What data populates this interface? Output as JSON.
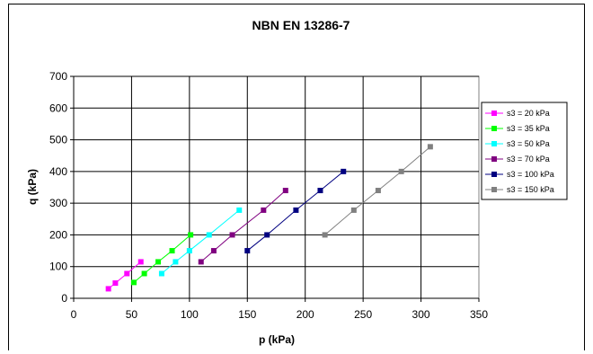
{
  "chart_data": {
    "type": "scatter",
    "title": "NBN EN 13286-7",
    "xlabel": "p (kPa)",
    "ylabel": "q (kPa)",
    "xlim": [
      0,
      350
    ],
    "ylim": [
      0,
      700
    ],
    "xticks": [
      "0",
      "50",
      "100",
      "150",
      "200",
      "250",
      "300",
      "350"
    ],
    "yticks": [
      "0",
      "100",
      "200",
      "300",
      "400",
      "500",
      "600",
      "700"
    ],
    "grid": true,
    "legend_position": "right",
    "series": [
      {
        "name": "s3 = 20 kPa",
        "color": "#ff00ff",
        "points": [
          [
            30,
            30
          ],
          [
            36,
            48
          ],
          [
            46,
            78
          ],
          [
            58,
            115
          ]
        ]
      },
      {
        "name": "s3 = 35 kPa",
        "color": "#00ff00",
        "points": [
          [
            52,
            50
          ],
          [
            61,
            78
          ],
          [
            73,
            115
          ],
          [
            85,
            150
          ],
          [
            101,
            200
          ]
        ]
      },
      {
        "name": "s3 = 50 kPa",
        "color": "#00ffff",
        "points": [
          [
            76,
            78
          ],
          [
            88,
            115
          ],
          [
            100,
            150
          ],
          [
            117,
            200
          ],
          [
            143,
            278
          ]
        ]
      },
      {
        "name": "s3 = 70 kPa",
        "color": "#800080",
        "points": [
          [
            110,
            115
          ],
          [
            121,
            150
          ],
          [
            137,
            200
          ],
          [
            164,
            278
          ],
          [
            183,
            340
          ]
        ]
      },
      {
        "name": "s3 = 100 kPa",
        "color": "#000080",
        "points": [
          [
            150,
            150
          ],
          [
            167,
            200
          ],
          [
            192,
            278
          ],
          [
            213,
            340
          ],
          [
            233,
            400
          ]
        ]
      },
      {
        "name": "s3 = 150 kPa",
        "color": "#808080",
        "points": [
          [
            217,
            200
          ],
          [
            242,
            278
          ],
          [
            263,
            340
          ],
          [
            283,
            400
          ],
          [
            308,
            478
          ]
        ]
      }
    ]
  }
}
